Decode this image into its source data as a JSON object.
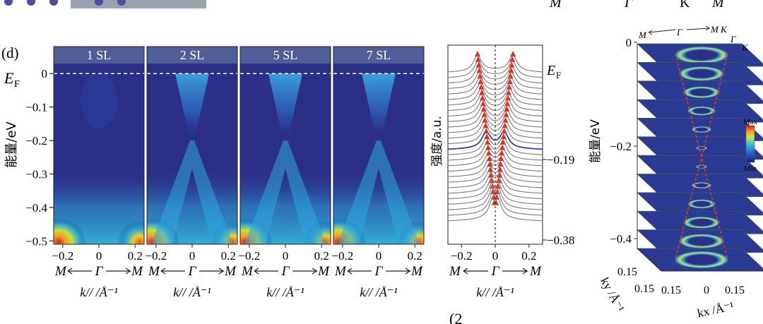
{
  "figure": {
    "top_strip": {
      "labels": [
        "M",
        "Γ",
        "K",
        "M"
      ]
    },
    "footer_fragment": "(2"
  },
  "panel_d": {
    "label": "(d)",
    "ef_label": "E",
    "ef_sub": "F",
    "ylabel": "能量/eV",
    "colors": {
      "low": "#2b2f88",
      "mid": "#2aa9de",
      "high": "#f2d027",
      "max": "#d7261e"
    }
  },
  "chart_data": [
    {
      "type": "heatmap",
      "name": "ARPES band maps vs. film thickness",
      "panels": [
        "1 SL",
        "2 SL",
        "5 SL",
        "7 SL"
      ],
      "dirac_cone_visible": [
        false,
        true,
        true,
        true
      ],
      "x_range": [
        -0.25,
        0.25
      ],
      "x_ticks": [
        -0.2,
        0,
        0.2
      ],
      "x_tick_labels": [
        "−0.2",
        "0",
        "0.2"
      ],
      "x_path": [
        "M",
        "Γ",
        "M"
      ],
      "xlabel": "k// /Å⁻¹",
      "y_range": [
        -0.51,
        0.03
      ],
      "y_ticks": [
        0,
        -0.1,
        -0.2,
        -0.3,
        -0.4,
        -0.5
      ],
      "y_tick_labels": [
        "0",
        "−0.1",
        "−0.2",
        "−0.3",
        "−0.4",
        "−0.5"
      ],
      "ylabel": "能量/eV",
      "fermi_level": 0,
      "fermi_label": "EF"
    },
    {
      "type": "line",
      "name": "MDC stack",
      "x_range": [
        -0.28,
        0.28
      ],
      "x_ticks": [
        -0.2,
        0,
        0.2
      ],
      "x_tick_labels": [
        "−0.2",
        "0",
        "0.2"
      ],
      "x_path": [
        "M",
        "Γ",
        "M"
      ],
      "xlabel": "k// /Å⁻¹",
      "ylabel": "强度/a.u.",
      "curve_count": 28,
      "highlight_curve_index": 14,
      "energy_labels": [
        "EF",
        "−0.19",
        "−0.38"
      ],
      "peak_markers": "red triangles tracking dispersion"
    },
    {
      "type": "heatmap",
      "name": "constant-energy contours stack",
      "slices": 12,
      "z_ticks": [
        "0",
        "−0.2",
        "−0.4"
      ],
      "zlabel": "能量/eV",
      "kx_ticks": [
        "0.15",
        "0",
        "0.15"
      ],
      "ky_ticks": [
        "0.15",
        "0.15"
      ],
      "kx_label": "kx /Å⁻¹",
      "ky_label": "ky /Å⁻¹",
      "top_labels": [
        "M",
        "Γ",
        "M",
        "K",
        "Γ",
        "K"
      ],
      "colorbar": {
        "max": "Max",
        "min": "Min"
      }
    }
  ]
}
